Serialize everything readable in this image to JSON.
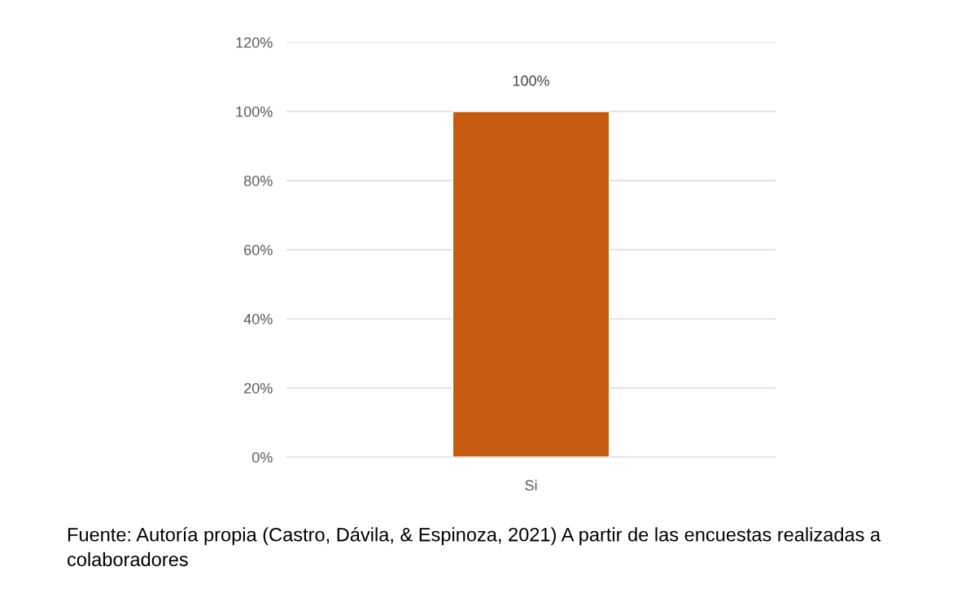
{
  "chart_data": {
    "type": "bar",
    "categories": [
      "Si"
    ],
    "series": [
      {
        "color": "#c55a11",
        "values": [
          100
        ],
        "value_labels": [
          "100%"
        ]
      }
    ],
    "ylim": [
      0,
      120
    ],
    "yticks": [
      {
        "value": 0,
        "label": "0%"
      },
      {
        "value": 20,
        "label": "20%"
      },
      {
        "value": 40,
        "label": "40%"
      },
      {
        "value": 60,
        "label": "60%"
      },
      {
        "value": 80,
        "label": "80%"
      },
      {
        "value": 100,
        "label": "100%"
      },
      {
        "value": 120,
        "label": "120%"
      }
    ],
    "grid": "y",
    "legend": false,
    "annotations": [
      "Fuente: Autoría propia (Castro, Dávila, & Espinoza, 2021) A partir de las encuestas realizadas a colaboradores"
    ]
  }
}
